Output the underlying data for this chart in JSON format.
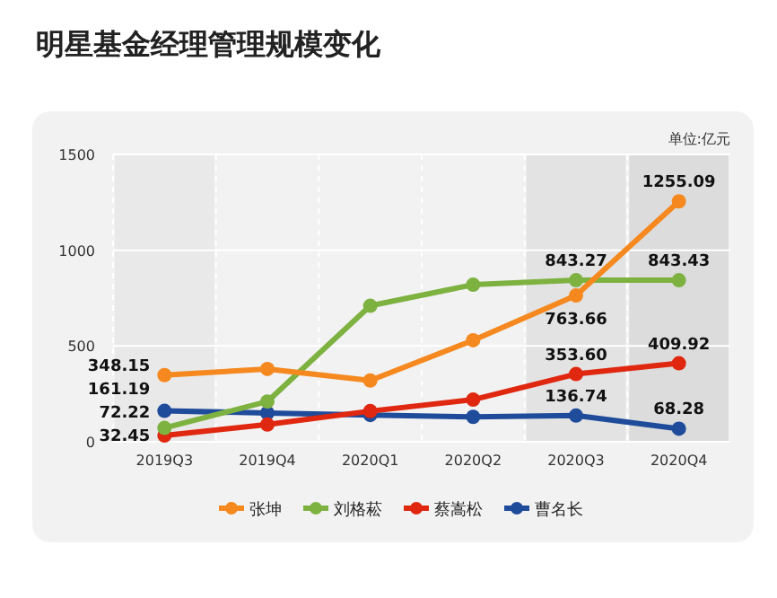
{
  "chart_data": {
    "type": "line",
    "title": "明星基金经理管理规模变化",
    "annotations": [
      "单位:亿元"
    ],
    "categories": [
      "2019Q3",
      "2019Q4",
      "2020Q1",
      "2020Q2",
      "2020Q3",
      "2020Q4"
    ],
    "series": [
      {
        "name": "张坤",
        "color": "#f5891f",
        "values": [
          348.15,
          380,
          320,
          530,
          763.66,
          1255.09
        ],
        "value_labels": [
          "348.15",
          null,
          null,
          null,
          "763.66",
          "1255.09"
        ]
      },
      {
        "name": "刘格菘",
        "color": "#7db240",
        "values": [
          72.22,
          210,
          710,
          820,
          843.27,
          843.43
        ],
        "value_labels": [
          "72.22",
          null,
          null,
          null,
          "843.27",
          "843.43"
        ]
      },
      {
        "name": "蔡嵩松",
        "color": "#e0270f",
        "values": [
          32.45,
          90,
          160,
          220,
          353.6,
          409.92
        ],
        "value_labels": [
          "32.45",
          null,
          null,
          null,
          "353.60",
          "409.92"
        ]
      },
      {
        "name": "曹名长",
        "color": "#1f4b9b",
        "values": [
          161.19,
          150,
          140,
          130,
          136.74,
          68.28
        ],
        "value_labels": [
          "161.19",
          null,
          null,
          null,
          "136.74",
          "68.28"
        ]
      }
    ],
    "bands": [
      {
        "axis": "x",
        "from": "2019Q3",
        "to": "2019Q3",
        "color": "#e9e9e9"
      },
      {
        "axis": "x",
        "from": "2020Q3",
        "to": "2020Q3",
        "color": "#e3e3e3"
      },
      {
        "axis": "x",
        "from": "2020Q4",
        "to": "2020Q4",
        "color": "#dcdcdc"
      }
    ],
    "ylim": [
      0,
      1500
    ],
    "yticks": [
      0,
      500,
      1000,
      1500
    ],
    "grid": true,
    "legend": "bottom",
    "marker": "circle",
    "line_style": "solid"
  }
}
